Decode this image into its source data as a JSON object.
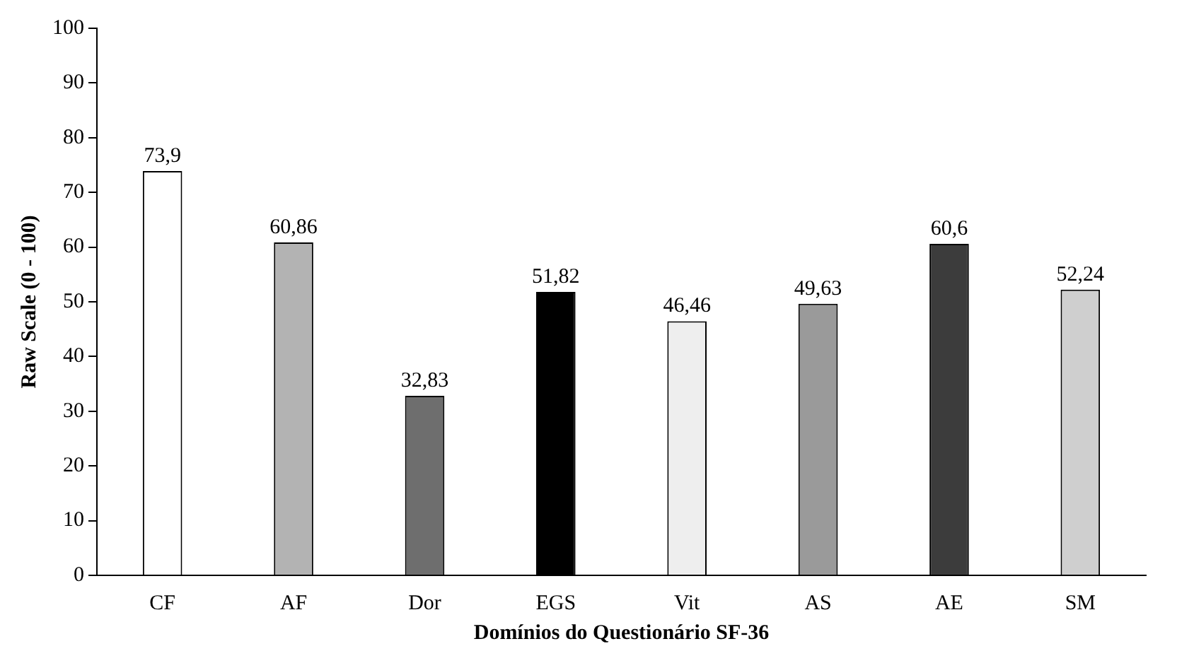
{
  "chart_data": {
    "type": "bar",
    "xlabel": "Domínios do Questionário SF-36",
    "ylabel": "Raw Scale (0 - 100)",
    "categories": [
      "CF",
      "AF",
      "Dor",
      "EGS",
      "Vit",
      "AS",
      "AE",
      "SM"
    ],
    "values": [
      73.9,
      60.86,
      32.83,
      51.82,
      46.46,
      49.63,
      60.6,
      52.24
    ],
    "value_labels": [
      "73,9",
      "60,86",
      "32,83",
      "51,82",
      "46,46",
      "49,63",
      "60,6",
      "52,24"
    ],
    "colors": [
      "#ffffff",
      "#b3b3b3",
      "#6e6e6e",
      "#000000",
      "#eeeeee",
      "#9a9a9a",
      "#3c3c3c",
      "#cfcfcf"
    ],
    "ylim": [
      0,
      100
    ],
    "yticks": [
      0,
      10,
      20,
      30,
      40,
      50,
      60,
      70,
      80,
      90,
      100
    ],
    "grid": false,
    "legend": false
  }
}
